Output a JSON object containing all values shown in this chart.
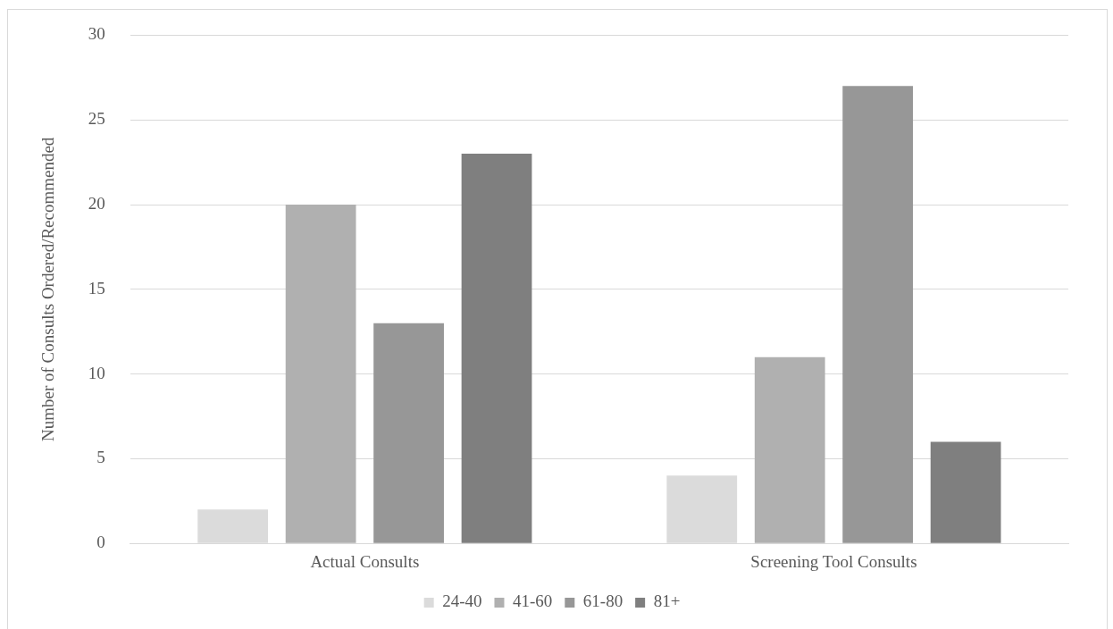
{
  "chart_data": {
    "type": "bar",
    "ylabel": "Number of Consults Ordered/Recommended",
    "categories": [
      "Actual Consults",
      "Screening Tool Consults"
    ],
    "series": [
      {
        "name": "24-40",
        "color": "#dbdbdb",
        "values": [
          2,
          4
        ]
      },
      {
        "name": "41-60",
        "color": "#b0b0b0",
        "values": [
          20,
          11
        ]
      },
      {
        "name": "61-80",
        "color": "#979797",
        "values": [
          13,
          27
        ]
      },
      {
        "name": "81+",
        "color": "#7f7f7f",
        "values": [
          23,
          6
        ]
      }
    ],
    "ylim": [
      0,
      30
    ],
    "yticks": [
      0,
      5,
      10,
      15,
      20,
      25,
      30
    ],
    "grid": "y",
    "legend": "bottom"
  }
}
